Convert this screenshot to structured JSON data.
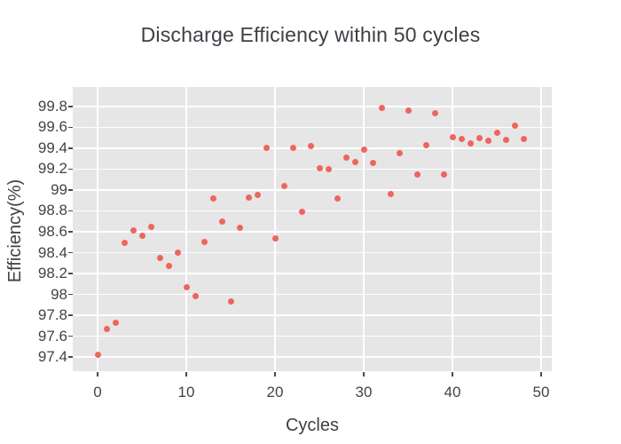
{
  "figure": {
    "title": "Discharge Efficiency within 50 cycles",
    "colors": {
      "plot_background": "#e6e6e6",
      "gridline": "#ffffff",
      "marker": "#ee6560",
      "title_text": "#3d4046",
      "tick_text": "#3f444a"
    }
  },
  "chart_data": {
    "type": "scatter",
    "title": "Discharge Efficiency within 50 cycles",
    "xlabel": "Cycles",
    "ylabel": "Efficiency(%)",
    "x": [
      0,
      1,
      2,
      3,
      4,
      5,
      6,
      7,
      8,
      9,
      10,
      11,
      12,
      13,
      14,
      15,
      16,
      17,
      18,
      19,
      20,
      21,
      22,
      23,
      24,
      25,
      26,
      27,
      28,
      29,
      30,
      31,
      32,
      33,
      34,
      35,
      36,
      37,
      38,
      39,
      40,
      41,
      42,
      43,
      44,
      45,
      46,
      47,
      48
    ],
    "y": [
      97.42,
      97.67,
      97.73,
      98.49,
      98.61,
      98.56,
      98.65,
      98.35,
      98.27,
      98.4,
      98.07,
      97.98,
      98.5,
      98.92,
      98.7,
      97.93,
      98.64,
      98.93,
      98.95,
      99.4,
      98.54,
      99.04,
      99.4,
      98.79,
      99.42,
      99.21,
      99.2,
      98.92,
      99.31,
      99.27,
      99.39,
      99.26,
      99.79,
      98.96,
      99.35,
      99.76,
      99.15,
      99.43,
      99.74,
      99.15,
      99.51,
      99.49,
      99.45,
      99.5,
      99.47,
      99.55,
      99.48,
      99.62,
      99.49
    ],
    "xlim": [
      -2.8,
      51.2
    ],
    "ylim": [
      97.264,
      99.987
    ],
    "x_ticks": [
      {
        "value": 0,
        "label": "0"
      },
      {
        "value": 10,
        "label": "10"
      },
      {
        "value": 20,
        "label": "20"
      },
      {
        "value": 30,
        "label": "30"
      },
      {
        "value": 40,
        "label": "40"
      },
      {
        "value": 50,
        "label": "50"
      }
    ],
    "y_ticks": [
      {
        "value": 99.8,
        "label": "99.8"
      },
      {
        "value": 99.6,
        "label": "99.6"
      },
      {
        "value": 99.4,
        "label": "99.4"
      },
      {
        "value": 99.2,
        "label": "99.2"
      },
      {
        "value": 99.0,
        "label": "99"
      },
      {
        "value": 98.8,
        "label": "98.8"
      },
      {
        "value": 98.6,
        "label": "98.6"
      },
      {
        "value": 98.4,
        "label": "98.4"
      },
      {
        "value": 98.2,
        "label": "98.2"
      },
      {
        "value": 98.0,
        "label": "98"
      },
      {
        "value": 97.8,
        "label": "97.8"
      },
      {
        "value": 97.6,
        "label": "97.6"
      },
      {
        "value": 97.4,
        "label": "97.4"
      }
    ],
    "grid": true,
    "legend": false
  }
}
